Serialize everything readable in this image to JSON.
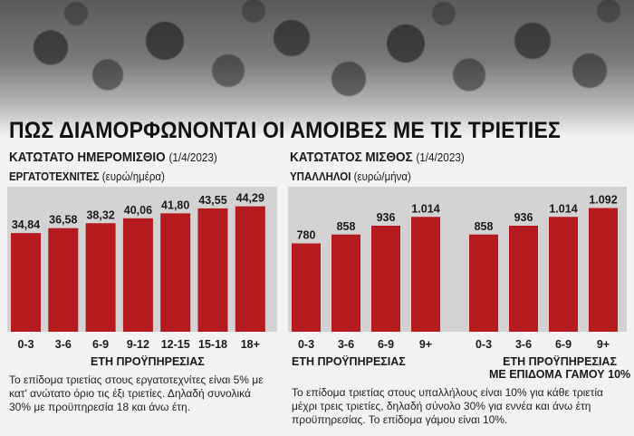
{
  "title": "ΠΩΣ ΔΙΑΜΟΡΦΩΝΟΝΤΑΙ ΟΙ ΑΜΟΙΒΕΣ ΜΕ ΤΙΣ ΤΡΙΕΤΙΕΣ",
  "left": {
    "heading": "ΚΑΤΩΤΑΤΟ ΗΜΕΡΟΜΙΣΘΙΟ",
    "date": "(1/4/2023)",
    "group": "ΕΡΓΑΤΟΤΕΧΝΙΤΕΣ",
    "unit": "(ευρώ/ημέρα)",
    "xlabel": "ΕΤΗ ΠΡΟΫΠΗΡΕΣΙΑΣ",
    "note": "Το επίδομα τριετίας στους εργατοτεχνίτες είναι 5% με κατ' ανώτατο όριο τις έξι τριετίες. Δηλαδή συνολικά 30% με προϋπηρεσία 18 και άνω έτη."
  },
  "right": {
    "heading": "ΚΑΤΩΤΑΤΟΣ ΜΙΣΘΟΣ",
    "date": "(1/4/2023)",
    "group": "ΥΠΑΛΛΗΛΟΙ",
    "unit": "(ευρώ/μήνα)",
    "xlabel_a": "ΕΤΗ ΠΡΟΫΠΗΡΕΣΙΑΣ",
    "xlabel_b_line1": "ΕΤΗ ΠΡΟΫΠΗΡΕΣΙΑΣ",
    "xlabel_b_line2": "ΜΕ ΕΠΙΔΟΜΑ ΓΑΜΟΥ 10%",
    "note": "Το επίδομα τριετίας στους υπαλλήλους είναι 10% για κάθε τριετία μέχρι τρεις τριετίες, δηλαδή σύνολο 30% για εννέα και άνω έτη προϋπηρεσίας. Το επίδομα γάμου είναι 10%."
  },
  "colors": {
    "bar": "#b51a1e",
    "panel": "#d3d3d3",
    "text": "#1a1a1a"
  },
  "chart_data": [
    {
      "type": "bar",
      "title": "ΚΑΤΩΤΑΤΟ ΗΜΕΡΟΜΙΣΘΙΟ",
      "xlabel": "ΕΤΗ ΠΡΟΫΠΗΡΕΣΙΑΣ",
      "ylabel": "(ευρώ/ημέρα)",
      "categories": [
        "0-3",
        "3-6",
        "6-9",
        "9-12",
        "12-15",
        "15-18",
        "18+"
      ],
      "values": [
        34.84,
        36.58,
        38.32,
        40.06,
        41.8,
        43.55,
        44.29
      ],
      "labels": [
        "34,84",
        "36,58",
        "38,32",
        "40,06",
        "41,80",
        "43,55",
        "44,29"
      ],
      "ylim": [
        0,
        48
      ],
      "grid": false
    },
    {
      "type": "bar",
      "title": "ΚΑΤΩΤΑΤΟΣ ΜΙΣΘΟΣ",
      "xlabel": "ΕΤΗ ΠΡΟΫΠΗΡΕΣΙΑΣ",
      "ylabel": "(ευρώ/μήνα)",
      "categories": [
        "0-3",
        "3-6",
        "6-9",
        "9+"
      ],
      "values": [
        780,
        858,
        936,
        1014
      ],
      "labels": [
        "780",
        "858",
        "936",
        "1.014"
      ],
      "ylim": [
        0,
        1200
      ],
      "grid": false
    },
    {
      "type": "bar",
      "title": "ΚΑΤΩΤΑΤΟΣ ΜΙΣΘΟΣ",
      "xlabel": "ΕΤΗ ΠΡΟΫΠΗΡΕΣΙΑΣ ΜΕ ΕΠΙΔΟΜΑ ΓΑΜΟΥ 10%",
      "ylabel": "(ευρώ/μήνα)",
      "categories": [
        "0-3",
        "3-6",
        "6-9",
        "9+"
      ],
      "values": [
        858,
        936,
        1014,
        1092
      ],
      "labels": [
        "858",
        "936",
        "1.014",
        "1.092"
      ],
      "ylim": [
        0,
        1200
      ],
      "grid": false
    }
  ]
}
